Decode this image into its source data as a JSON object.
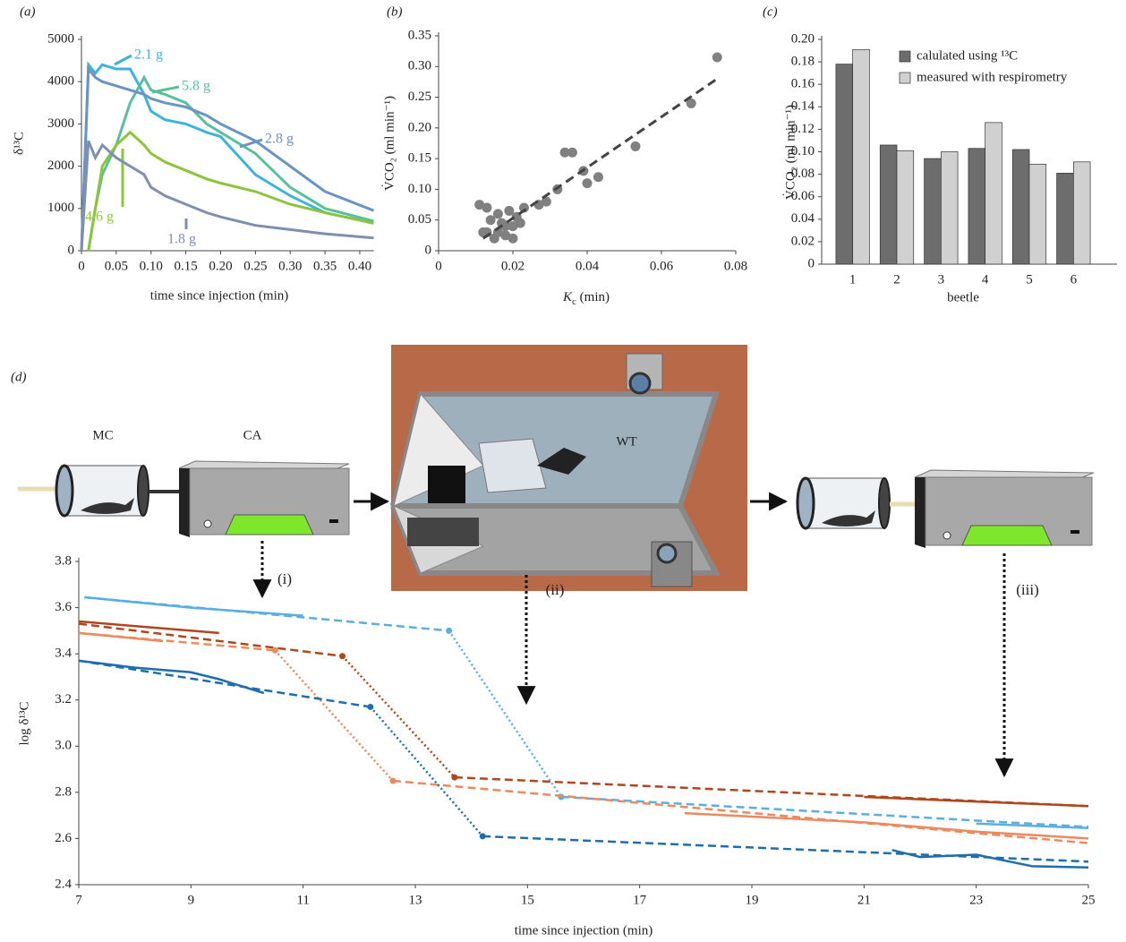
{
  "chart_data": [
    {
      "type": "line",
      "title": "(a)",
      "x_label": "time since injection (min)",
      "y_label": "δ¹³C",
      "xlim": [
        0,
        0.42
      ],
      "ylim": [
        0,
        5000
      ],
      "xticks": [
        0,
        0.05,
        {
          "value": 0.1,
          "label": "0.10"
        },
        0.15,
        {
          "value": 0.2,
          "label": "0.20"
        },
        0.25,
        {
          "value": 0.3,
          "label": "0.30"
        },
        0.35,
        {
          "value": 0.4,
          "label": "0.40"
        }
      ],
      "yticks": [
        0,
        1000,
        2000,
        3000,
        4000,
        5000
      ],
      "x": [
        0,
        0.01,
        0.02,
        0.03,
        0.05,
        0.07,
        0.09,
        0.1,
        0.12,
        0.15,
        0.18,
        0.2,
        0.25,
        0.3,
        0.35,
        0.42
      ],
      "series": [
        {
          "name": "2.1 g",
          "color": "#3fb2dc",
          "values": [
            0,
            4400,
            4200,
            4400,
            4300,
            4300,
            3700,
            3300,
            3100,
            3000,
            2800,
            2700,
            1800,
            1300,
            900,
            650
          ]
        },
        {
          "name": "5.8 g",
          "color": "#5cbf9c",
          "values": [
            null,
            0,
            1000,
            1800,
            2500,
            3500,
            4100,
            3800,
            3700,
            3500,
            3000,
            2800,
            2300,
            1500,
            1000,
            700
          ]
        },
        {
          "name": "2.8 g",
          "color": "#6b93c4",
          "values": [
            0,
            4300,
            4100,
            4000,
            3900,
            3800,
            3700,
            3600,
            3500,
            3400,
            3200,
            3000,
            2600,
            2000,
            1400,
            950
          ]
        },
        {
          "name": "4.6 g",
          "color": "#8cc43c",
          "values": [
            null,
            0,
            1000,
            2000,
            2500,
            2800,
            2500,
            2300,
            2100,
            1900,
            1700,
            1600,
            1400,
            1100,
            900,
            650
          ]
        },
        {
          "name": "1.8 g",
          "color": "#7f8fb0",
          "values": [
            0,
            2600,
            2200,
            2500,
            2200,
            2000,
            1800,
            1500,
            1300,
            1100,
            900,
            800,
            600,
            500,
            400,
            300
          ]
        }
      ]
    },
    {
      "type": "scatter",
      "title": "(b)",
      "x_label": [
        "K",
        "c",
        " (min)"
      ],
      "y_label": "V̇CO₂ (ml min⁻¹)",
      "xlim": [
        0,
        0.08
      ],
      "ylim": [
        0,
        0.35
      ],
      "color": "#808080",
      "xticks": [
        0,
        0.02,
        0.04,
        0.06,
        0.08
      ],
      "yticks": [
        0,
        0.05,
        {
          "value": 0.1,
          "label": "0.10"
        },
        0.15,
        {
          "value": 0.2,
          "label": "0.20"
        },
        0.25,
        {
          "value": 0.3,
          "label": "0.30"
        },
        0.35
      ],
      "x": [
        0.011,
        0.012,
        0.013,
        0.013,
        0.014,
        0.015,
        0.016,
        0.016,
        0.017,
        0.018,
        0.018,
        0.019,
        0.02,
        0.02,
        0.021,
        0.022,
        0.023,
        0.027,
        0.029,
        0.032,
        0.034,
        0.036,
        0.039,
        0.04,
        0.043,
        0.053,
        0.068,
        0.075
      ],
      "values": [
        0.075,
        0.03,
        0.07,
        0.03,
        0.05,
        0.02,
        0.03,
        0.06,
        0.045,
        0.025,
        0.04,
        0.065,
        0.02,
        0.04,
        0.055,
        0.045,
        0.07,
        0.075,
        0.08,
        0.1,
        0.16,
        0.16,
        0.13,
        0.11,
        0.12,
        0.17,
        0.24,
        0.315
      ],
      "fit": {
        "x": [
          0.012,
          0.075
        ],
        "values": [
          0.02,
          0.28
        ]
      }
    },
    {
      "type": "bar",
      "title": "(c)",
      "x_label": "beetle",
      "y_label": "V̇CO₂ (ml min⁻¹)",
      "ylim": [
        0,
        0.2
      ],
      "yticks": [
        0,
        0.02,
        0.04,
        0.06,
        0.08,
        {
          "value": 0.1,
          "label": "0.10"
        },
        0.12,
        0.14,
        0.16,
        0.18,
        {
          "value": 0.2,
          "label": "0.20"
        }
      ],
      "categories": [
        "1",
        "2",
        "3",
        "4",
        "5",
        "6"
      ],
      "series": [
        {
          "name": "calulated using ¹³C",
          "color": "#6d6d6d",
          "values": [
            0.178,
            0.106,
            0.094,
            0.103,
            0.102,
            0.081
          ]
        },
        {
          "name": "measured with respirometry",
          "color": "#d0d0d0",
          "values": [
            0.191,
            0.101,
            0.1,
            0.126,
            0.089,
            0.091
          ]
        }
      ]
    },
    {
      "type": "line",
      "title": "(d)",
      "x_label": "time since injection (min)",
      "y_label": "log δ¹³C",
      "xlim": [
        7,
        25
      ],
      "ylim": [
        2.4,
        3.8
      ],
      "xticks": [
        7,
        9,
        11,
        13,
        15,
        17,
        19,
        21,
        23,
        25
      ],
      "yticks": [
        2.4,
        2.6,
        2.8,
        {
          "value": 3,
          "label": "3.0"
        },
        3.2,
        3.4,
        3.6,
        3.8
      ],
      "series": [
        {
          "color": "#5aaee0",
          "style": "solid",
          "x": [
            7.1,
            9,
            11,
            17,
            23,
            25
          ],
          "values": [
            3.645,
            3.6,
            3.565,
            null,
            2.665,
            2.645
          ]
        },
        {
          "color": "#5aaee0",
          "style": "dashed",
          "x": [
            7.1,
            13.6,
            14.6,
            15.6,
            25
          ],
          "values": [
            3.645,
            3.5,
            null,
            2.78,
            2.65
          ]
        },
        {
          "color": "#5aaee0",
          "style": "dotted",
          "x": [
            13.6,
            15.6
          ],
          "values": [
            3.5,
            2.78
          ]
        },
        {
          "color": "#b0461d",
          "style": "solid",
          "x": [
            7,
            9.5,
            15,
            21,
            25
          ],
          "values": [
            3.54,
            3.49,
            null,
            2.78,
            2.74
          ]
        },
        {
          "color": "#b0461d",
          "style": "dashed",
          "x": [
            7,
            11.7,
            12.7,
            13.7,
            25
          ],
          "values": [
            3.53,
            3.39,
            null,
            2.865,
            2.74
          ]
        },
        {
          "color": "#b0461d",
          "style": "dotted",
          "x": [
            11.7,
            13.7
          ],
          "values": [
            3.39,
            2.865
          ]
        },
        {
          "color": "#eb8a5e",
          "style": "solid",
          "x": [
            7,
            8.5,
            13,
            17.8,
            21,
            23,
            25
          ],
          "values": [
            3.49,
            3.455,
            null,
            2.71,
            2.67,
            2.63,
            2.6
          ]
        },
        {
          "color": "#eb8a5e",
          "style": "dashed",
          "x": [
            7,
            10.5,
            11.5,
            12.6,
            25
          ],
          "values": [
            3.49,
            3.415,
            null,
            2.85,
            2.58
          ]
        },
        {
          "color": "#eb8a5e",
          "style": "dotted",
          "x": [
            10.5,
            12.6
          ],
          "values": [
            3.415,
            2.85
          ]
        },
        {
          "color": "#1f6eab",
          "style": "solid",
          "x": [
            7,
            8,
            9,
            9.5,
            10.3,
            16,
            21.5,
            22,
            23,
            24,
            25
          ],
          "values": [
            3.37,
            3.34,
            3.32,
            3.29,
            3.23,
            null,
            2.55,
            2.52,
            2.53,
            2.48,
            2.475
          ]
        },
        {
          "color": "#1f6eab",
          "style": "dashed",
          "x": [
            7,
            12.2,
            13.2,
            14.2,
            25
          ],
          "values": [
            3.37,
            3.17,
            null,
            2.61,
            2.5
          ]
        },
        {
          "color": "#1f6eab",
          "style": "dotted",
          "x": [
            12.2,
            14.2
          ],
          "values": [
            3.17,
            2.61
          ]
        }
      ]
    }
  ],
  "diagram": {
    "mc": "MC",
    "ca": "CA",
    "wt": "WT",
    "steps": [
      "(i)",
      "(ii)",
      "(iii)"
    ]
  }
}
